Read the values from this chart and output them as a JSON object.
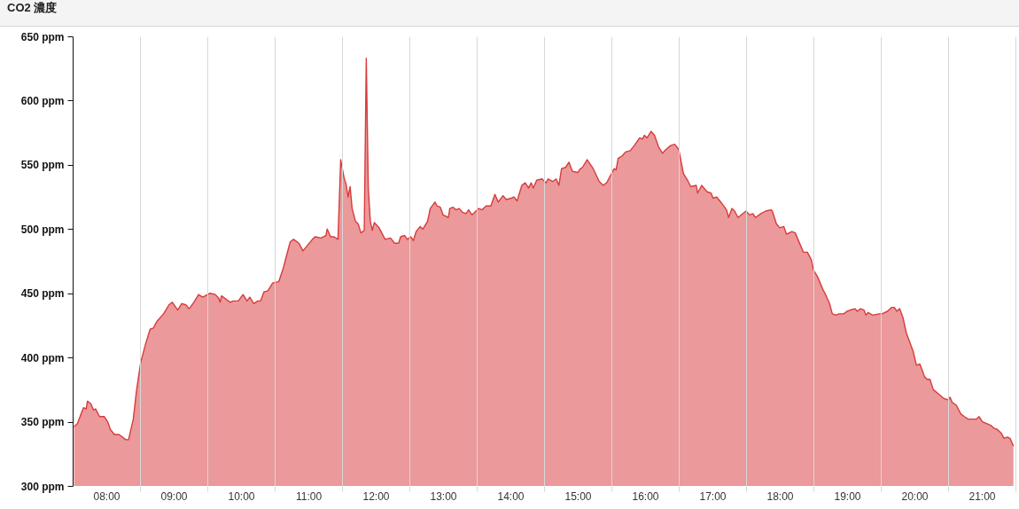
{
  "chart_data": {
    "type": "area",
    "title": "CO2 濃度",
    "grid": "x",
    "xlim": [
      7.5,
      21.5
    ],
    "xticks": [
      {
        "value": 8,
        "label": "08:00"
      },
      {
        "value": 8.5,
        "label": null
      },
      {
        "value": 9,
        "label": "09:00"
      },
      {
        "value": 9.5,
        "label": null
      },
      {
        "value": 10,
        "label": "10:00"
      },
      {
        "value": 10.5,
        "label": null
      },
      {
        "value": 11,
        "label": "11:00"
      },
      {
        "value": 11.5,
        "label": null
      },
      {
        "value": 12,
        "label": "12:00"
      },
      {
        "value": 12.5,
        "label": null
      },
      {
        "value": 13,
        "label": "13:00"
      },
      {
        "value": 13.5,
        "label": null
      },
      {
        "value": 14,
        "label": "14:00"
      },
      {
        "value": 14.5,
        "label": null
      },
      {
        "value": 15,
        "label": "15:00"
      },
      {
        "value": 15.5,
        "label": null
      },
      {
        "value": 16,
        "label": "16:00"
      },
      {
        "value": 16.5,
        "label": null
      },
      {
        "value": 17,
        "label": "17:00"
      },
      {
        "value": 17.5,
        "label": null
      },
      {
        "value": 18,
        "label": "18:00"
      },
      {
        "value": 18.5,
        "label": null
      },
      {
        "value": 19,
        "label": "19:00"
      },
      {
        "value": 19.5,
        "label": null
      },
      {
        "value": 20,
        "label": "20:00"
      },
      {
        "value": 20.5,
        "label": null
      },
      {
        "value": 21,
        "label": "21:00"
      },
      {
        "value": 21.5,
        "label": null
      }
    ],
    "ylim": [
      300,
      650
    ],
    "yticks": [
      {
        "value": 300,
        "label": "300 ppm"
      },
      {
        "value": 350,
        "label": "350 ppm"
      },
      {
        "value": 400,
        "label": "400 ppm"
      },
      {
        "value": 450,
        "label": "450 ppm"
      },
      {
        "value": 500,
        "label": "500 ppm"
      },
      {
        "value": 550,
        "label": "550 ppm"
      },
      {
        "value": 600,
        "label": "600 ppm"
      },
      {
        "value": 650,
        "label": "650 ppm"
      }
    ],
    "x": [
      7.52,
      7.57,
      7.66,
      7.7,
      7.72,
      7.77,
      7.81,
      7.84,
      7.9,
      7.97,
      8.02,
      8.06,
      8.12,
      8.19,
      8.29,
      8.33,
      8.4,
      8.45,
      8.51,
      8.58,
      8.65,
      8.7,
      8.75,
      8.85,
      8.93,
      8.98,
      9.06,
      9.12,
      9.18,
      9.23,
      9.3,
      9.37,
      9.43,
      9.54,
      9.62,
      9.67,
      9.69,
      9.71,
      9.84,
      9.88,
      9.96,
      10.0,
      10.03,
      10.09,
      10.13,
      10.19,
      10.25,
      10.29,
      10.34,
      10.4,
      10.47,
      10.56,
      10.63,
      10.73,
      10.78,
      10.86,
      10.92,
      11.06,
      11.1,
      11.19,
      11.26,
      11.28,
      11.33,
      11.38,
      11.44,
      11.48,
      11.53,
      11.56,
      11.59,
      11.62,
      11.65,
      11.7,
      11.74,
      11.78,
      11.83,
      11.86,
      11.89,
      11.92,
      11.95,
      11.98,
      12.05,
      12.14,
      12.22,
      12.28,
      12.34,
      12.37,
      12.43,
      12.47,
      12.52,
      12.56,
      12.6,
      12.66,
      12.7,
      12.77,
      12.81,
      12.88,
      12.91,
      12.96,
      13.0,
      13.08,
      13.1,
      13.15,
      13.19,
      13.24,
      13.29,
      13.34,
      13.38,
      13.43,
      13.53,
      13.58,
      13.64,
      13.71,
      13.77,
      13.82,
      13.89,
      13.94,
      14.01,
      14.05,
      14.1,
      14.17,
      14.22,
      14.27,
      14.31,
      14.34,
      14.39,
      14.47,
      14.53,
      14.56,
      14.63,
      14.68,
      14.72,
      14.76,
      14.82,
      14.87,
      14.92,
      15.0,
      15.04,
      15.07,
      15.14,
      15.23,
      15.32,
      15.38,
      15.43,
      15.54,
      15.57,
      15.6,
      15.66,
      15.71,
      15.78,
      15.84,
      15.92,
      15.96,
      15.99,
      16.03,
      16.09,
      16.14,
      16.2,
      16.26,
      16.31,
      16.38,
      16.44,
      16.5,
      16.57,
      16.63,
      16.68,
      16.76,
      16.78,
      16.84,
      16.92,
      16.98,
      17.01,
      17.06,
      17.14,
      17.21,
      17.24,
      17.29,
      17.33,
      17.38,
      17.5,
      17.55,
      17.6,
      17.64,
      17.72,
      17.79,
      17.87,
      17.89,
      17.95,
      18.0,
      18.06,
      18.1,
      18.18,
      18.23,
      18.31,
      18.35,
      18.41,
      18.47,
      18.5,
      18.56,
      18.64,
      18.68,
      18.74,
      18.78,
      18.83,
      18.88,
      18.95,
      19.0,
      19.05,
      19.12,
      19.15,
      19.2,
      19.25,
      19.28,
      19.31,
      19.38,
      19.48,
      19.52,
      19.6,
      19.66,
      19.7,
      19.74,
      19.78,
      19.83,
      19.88,
      19.98,
      20.03,
      20.08,
      20.11,
      20.15,
      20.19,
      20.23,
      20.28,
      20.35,
      20.44,
      20.5,
      20.53,
      20.56,
      20.62,
      20.69,
      20.74,
      20.8,
      20.87,
      20.92,
      20.96,
      21.01,
      21.14,
      21.18,
      21.23,
      21.29,
      21.33,
      21.38,
      21.42,
      21.47
    ],
    "series": [
      {
        "color": "#d83b3d",
        "values": [
          346,
          348.5,
          361,
          360,
          366,
          364,
          359,
          360,
          354,
          354,
          350,
          344,
          340,
          340,
          336,
          336,
          352,
          375,
          396,
          410,
          422,
          423,
          428,
          434,
          441,
          443,
          437,
          442,
          441,
          438,
          443,
          449,
          447,
          450,
          449,
          446,
          443,
          448,
          443,
          444,
          444,
          447,
          449,
          444,
          447,
          442,
          444,
          444,
          451,
          452,
          458,
          459,
          470,
          490,
          492,
          489,
          483,
          492,
          494,
          493,
          495,
          500,
          494,
          494,
          492,
          554,
          540,
          535,
          525,
          533,
          516,
          506,
          504,
          497,
          499,
          633,
          532,
          506,
          499,
          505,
          501,
          492,
          493,
          489,
          489,
          494,
          495,
          492,
          494,
          491,
          498,
          502,
          500,
          506,
          516,
          521,
          518,
          517,
          511,
          509,
          516,
          517,
          515,
          516,
          513,
          512,
          515,
          511,
          516,
          515,
          518,
          518,
          527,
          521,
          526,
          523,
          524,
          525,
          522,
          534,
          536,
          532,
          536,
          532,
          538,
          539,
          536,
          539,
          537,
          539,
          534,
          547,
          548,
          552,
          545,
          544,
          547,
          548,
          554,
          547,
          537,
          534,
          536,
          547,
          546,
          555,
          557,
          560,
          561,
          565,
          571,
          570,
          573,
          571,
          576,
          573,
          564,
          559,
          562,
          565,
          566,
          562,
          543,
          538,
          533,
          534,
          528,
          534,
          529,
          528,
          524,
          525,
          520,
          515,
          509,
          516,
          514,
          509,
          514,
          511,
          512,
          509,
          512,
          514,
          515,
          514,
          504,
          501,
          502,
          496,
          498,
          497,
          487,
          482,
          482,
          476,
          468,
          463,
          453,
          449,
          442,
          434,
          433,
          434,
          434,
          436,
          437,
          438,
          436,
          438,
          437,
          433,
          435,
          433,
          434,
          434,
          436,
          439,
          439,
          436,
          438,
          431,
          419,
          405,
          394,
          395,
          391,
          385,
          383,
          383,
          375,
          372,
          368,
          367,
          369,
          365,
          363,
          356,
          354,
          352,
          352,
          352,
          354,
          350,
          347,
          345,
          344,
          341,
          337,
          338,
          337,
          331
        ]
      }
    ]
  }
}
